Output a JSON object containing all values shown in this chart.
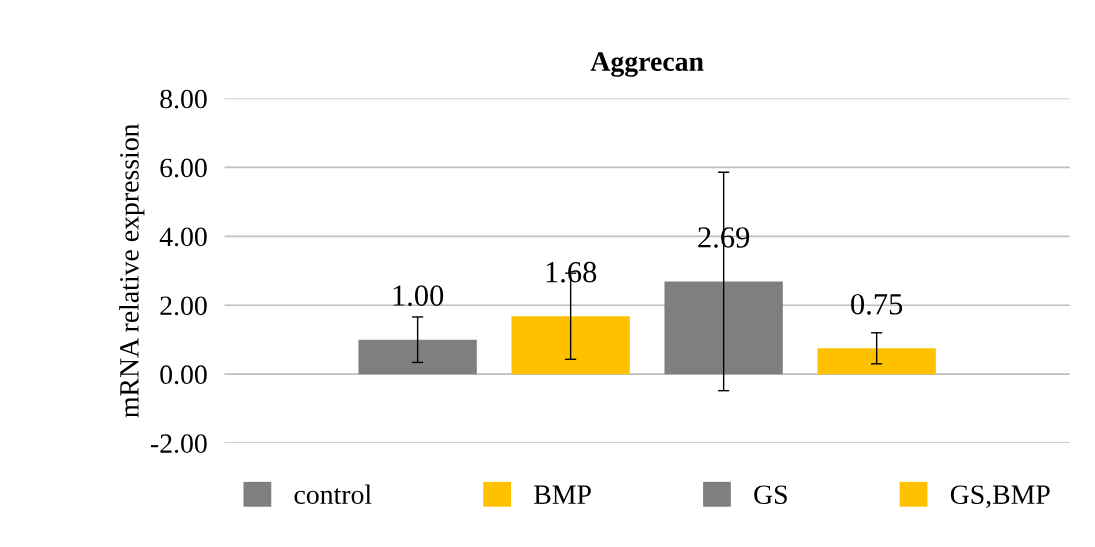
{
  "chart_data": {
    "type": "bar",
    "title": "Aggrecan",
    "ylabel": "mRNA relative expression",
    "categories": [
      null
    ],
    "series": [
      {
        "name": "control",
        "color": "#7f7f7f",
        "values": [
          1.0
        ],
        "errors": [
          0.66
        ],
        "value_labels": [
          "1.00"
        ]
      },
      {
        "name": "BMP",
        "color": "#ffc000",
        "values": [
          1.68
        ],
        "errors": [
          1.25
        ],
        "value_labels": [
          "1.68"
        ]
      },
      {
        "name": "GS",
        "color": "#7f7f7f",
        "values": [
          2.69
        ],
        "errors": [
          3.17
        ],
        "value_labels": [
          "2.69"
        ]
      },
      {
        "name": "GS,BMP",
        "color": "#ffc000",
        "values": [
          0.75
        ],
        "errors": [
          0.45
        ],
        "value_labels": [
          "0.75"
        ]
      }
    ],
    "ylim": [
      -2,
      8
    ],
    "yticks": [
      {
        "value": -2,
        "label": "-2.00"
      },
      {
        "value": 0,
        "label": "0.00"
      },
      {
        "value": 2,
        "label": "2.00"
      },
      {
        "value": 4,
        "label": "4.00"
      },
      {
        "value": 6,
        "label": "6.00"
      },
      {
        "value": 8,
        "label": "8.00"
      }
    ],
    "grid": "y",
    "legend": "bottom"
  }
}
